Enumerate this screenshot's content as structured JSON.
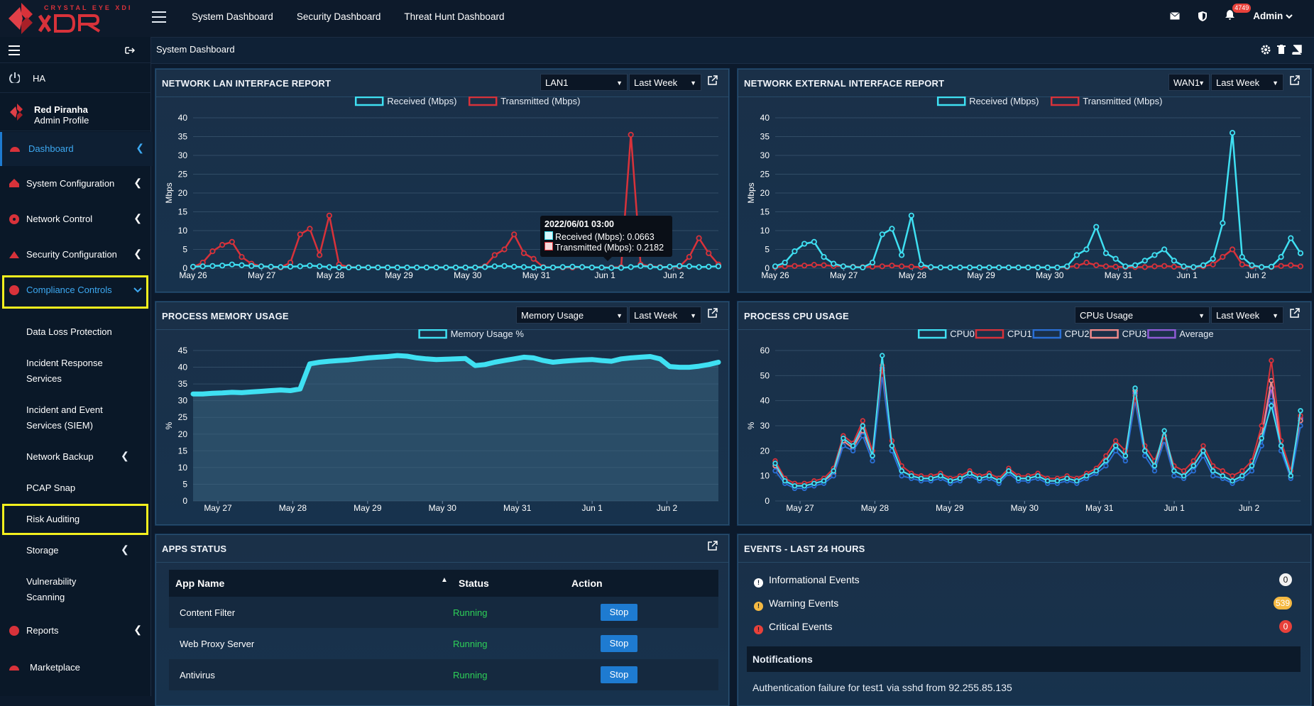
{
  "topbar": {
    "brand": "CRYSTAL EYE XDR",
    "nav": [
      "System Dashboard",
      "Security Dashboard",
      "Threat Hunt Dashboard"
    ],
    "notification_count": "4749",
    "user": "Admin"
  },
  "sidebar": {
    "ha_label": "HA",
    "profile_name": "Red Piranha",
    "profile_role": "Admin Profile",
    "items": [
      {
        "label": "Dashboard"
      },
      {
        "label": "System Configuration"
      },
      {
        "label": "Network Control"
      },
      {
        "label": "Security Configuration"
      },
      {
        "label": "Compliance Controls"
      }
    ],
    "sub_items": [
      "Data Loss Protection",
      "Incident Response",
      "Services",
      "Incident and Event",
      "Services (SIEM)",
      "Network Backup",
      "PCAP Snap",
      "Risk Auditing",
      "Storage",
      "Vulnerability",
      "Scanning"
    ],
    "bottom_items": [
      "Reports",
      "Marketplace"
    ]
  },
  "page": {
    "title": "System Dashboard"
  },
  "lan_panel": {
    "title": "NETWORK LAN INTERFACE REPORT",
    "interface": "LAN1",
    "range": "Last Week",
    "tooltip_time": "2022/06/01 03:00",
    "tooltip_received": "Received (Mbps): 0.0663",
    "tooltip_transmitted": "Transmitted (Mbps): 0.2182"
  },
  "wan_panel": {
    "title": "NETWORK EXTERNAL INTERFACE REPORT",
    "interface": "WAN1",
    "range": "Last Week"
  },
  "mem_panel": {
    "title": "PROCESS MEMORY USAGE",
    "metric": "Memory Usage",
    "range": "Last Week"
  },
  "cpu_panel": {
    "title": "PROCESS CPU USAGE",
    "metric": "CPUs Usage",
    "range": "Last Week"
  },
  "apps_panel": {
    "title": "APPS STATUS",
    "columns": [
      "App Name",
      "Status",
      "Action"
    ],
    "rows": [
      {
        "name": "Content Filter",
        "status": "Running",
        "action": "Stop"
      },
      {
        "name": "Web Proxy Server",
        "status": "Running",
        "action": "Stop"
      },
      {
        "name": "Antivirus",
        "status": "Running",
        "action": "Stop"
      }
    ]
  },
  "events_panel": {
    "title": "EVENTS - LAST 24 HOURS",
    "events": [
      {
        "label": "Informational Events",
        "count": "0"
      },
      {
        "label": "Warning Events",
        "count": "539"
      },
      {
        "label": "Critical Events",
        "count": "0"
      }
    ],
    "notifications_title": "Notifications",
    "notification": "Authentication failure for test1 via sshd from 92.255.85.135"
  },
  "colors": {
    "received": "#3fe0f2",
    "transmitted": "#d8323a",
    "cpu2": "#2a6fd6",
    "cpu3": "#f08a8a",
    "average": "#8f5bd6",
    "accent": "#1e7bd1"
  },
  "chart_data": [
    {
      "type": "line",
      "title": "NETWORK LAN INTERFACE REPORT",
      "ylabel": "Mbps",
      "ylim": [
        0,
        40
      ],
      "yticks": [
        0,
        5,
        10,
        15,
        20,
        25,
        30,
        35,
        40
      ],
      "xticks": [
        "May 26",
        "May 27",
        "May 28",
        "May 29",
        "May 30",
        "May 31",
        "Jun 1",
        "Jun 2"
      ],
      "legend": "top-center",
      "series": [
        {
          "name": "Received (Mbps)",
          "color": "#3fe0f2",
          "values": [
            0.4,
            0.5,
            0.6,
            0.7,
            1.0,
            0.8,
            0.6,
            0.5,
            0.4,
            0.3,
            0.4,
            0.5,
            0.7,
            0.5,
            0.3,
            0.2,
            0.2,
            0.2,
            0.2,
            0.2,
            0.2,
            0.2,
            0.2,
            0.2,
            0.2,
            0.2,
            0.2,
            0.2,
            0.2,
            0.2,
            0.3,
            0.5,
            0.6,
            0.4,
            0.3,
            0.2,
            0.2,
            0.2,
            0.3,
            0.4,
            0.3,
            0.2,
            0.2,
            0.1,
            0.1,
            0.3,
            0.6,
            0.4,
            0.2,
            0.4,
            0.6,
            0.5,
            0.3,
            0.4,
            0.5
          ]
        },
        {
          "name": "Transmitted (Mbps)",
          "color": "#d8323a",
          "values": [
            0.3,
            1.5,
            4.5,
            6.2,
            7.0,
            3.0,
            1.2,
            0.5,
            0.3,
            0.2,
            1.5,
            9.0,
            10.5,
            3.5,
            14.0,
            1.0,
            0.3,
            0.2,
            0.2,
            0.2,
            0.2,
            0.2,
            0.2,
            0.2,
            0.2,
            0.2,
            0.2,
            0.2,
            0.2,
            0.2,
            0.5,
            3.5,
            5.0,
            9.0,
            4.0,
            2.5,
            0.3,
            0.2,
            0.2,
            0.2,
            0.3,
            0.2,
            0.2,
            0.2,
            0.3,
            35.5,
            1.0,
            0.5,
            0.3,
            0.3,
            0.4,
            3.0,
            8.0,
            4.0,
            1.0
          ]
        }
      ]
    },
    {
      "type": "line",
      "title": "NETWORK EXTERNAL INTERFACE REPORT",
      "ylabel": "Mbps",
      "ylim": [
        0,
        40
      ],
      "yticks": [
        0,
        5,
        10,
        15,
        20,
        25,
        30,
        35,
        40
      ],
      "xticks": [
        "May 26",
        "May 27",
        "May 28",
        "May 29",
        "May 30",
        "May 31",
        "Jun 1",
        "Jun 2"
      ],
      "legend": "top-center",
      "series": [
        {
          "name": "Received (Mbps)",
          "color": "#3fe0f2",
          "values": [
            0.5,
            1.5,
            4.5,
            6.5,
            7.0,
            3.0,
            1.2,
            0.5,
            0.3,
            0.2,
            1.5,
            9.0,
            10.5,
            3.5,
            14.0,
            1.0,
            0.3,
            0.2,
            0.2,
            0.2,
            0.2,
            0.2,
            0.2,
            0.2,
            0.2,
            0.2,
            0.2,
            0.2,
            0.2,
            0.2,
            0.5,
            3.5,
            5.0,
            11.0,
            4.0,
            2.5,
            0.5,
            0.8,
            2.0,
            3.5,
            5.0,
            2.0,
            0.5,
            0.3,
            0.8,
            2.5,
            12.0,
            36.0,
            3.0,
            0.8,
            0.3,
            0.4,
            3.0,
            8.0,
            4.0
          ]
        },
        {
          "name": "Transmitted (Mbps)",
          "color": "#d8323a",
          "values": [
            0.3,
            0.5,
            0.6,
            0.7,
            0.9,
            0.8,
            0.6,
            0.5,
            0.4,
            0.3,
            0.4,
            0.5,
            0.7,
            0.5,
            0.4,
            0.3,
            0.2,
            0.2,
            0.2,
            0.2,
            0.2,
            0.2,
            0.2,
            0.2,
            0.2,
            0.2,
            0.2,
            0.2,
            0.2,
            0.2,
            0.3,
            0.6,
            1.5,
            0.8,
            0.5,
            0.4,
            0.3,
            0.3,
            0.3,
            0.5,
            0.6,
            0.4,
            0.3,
            0.2,
            0.5,
            1.0,
            3.0,
            5.0,
            1.0,
            0.5,
            0.3,
            0.3,
            0.6,
            0.8,
            0.5
          ]
        }
      ]
    },
    {
      "type": "area",
      "title": "PROCESS MEMORY USAGE",
      "ylabel": "%",
      "ylim": [
        0,
        45
      ],
      "yticks": [
        0,
        5,
        10,
        15,
        20,
        25,
        30,
        35,
        40,
        45
      ],
      "xticks": [
        "May 27",
        "May 28",
        "May 29",
        "May 30",
        "May 31",
        "Jun 1",
        "Jun 2"
      ],
      "legend": "top-center",
      "series": [
        {
          "name": "Memory Usage %",
          "color": "#3fe0f2",
          "values": [
            32,
            32,
            32.2,
            32.3,
            32.5,
            32.4,
            32.6,
            32.8,
            33,
            33.2,
            33,
            33.5,
            41,
            41.5,
            41.8,
            42,
            42.2,
            42.5,
            42.8,
            43,
            43.2,
            43.5,
            43.3,
            42.8,
            42.5,
            42.3,
            42.4,
            42.5,
            42.6,
            40.5,
            40.8,
            41.5,
            42,
            42.5,
            43,
            42.8,
            42,
            41.5,
            41.8,
            42,
            42.2,
            42.3,
            42,
            41.8,
            42.5,
            42.8,
            43,
            43.2,
            42.5,
            40.2,
            40,
            40,
            40.3,
            40.8,
            41.5
          ]
        }
      ]
    },
    {
      "type": "line",
      "title": "PROCESS CPU USAGE",
      "ylabel": "%",
      "ylim": [
        0,
        60
      ],
      "yticks": [
        0,
        10,
        20,
        30,
        40,
        50,
        60
      ],
      "xticks": [
        "May 27",
        "May 28",
        "May 29",
        "May 30",
        "May 31",
        "Jun 1",
        "Jun 2"
      ],
      "legend": "top-center",
      "series": [
        {
          "name": "CPU0",
          "color": "#3fe0f2",
          "values": [
            15,
            8,
            6,
            6,
            7,
            8,
            12,
            25,
            22,
            30,
            18,
            58,
            22,
            12,
            10,
            9,
            9,
            10,
            8,
            9,
            11,
            9,
            10,
            8,
            12,
            9,
            9,
            10,
            8,
            8,
            9,
            8,
            10,
            12,
            16,
            22,
            18,
            45,
            20,
            14,
            28,
            12,
            10,
            14,
            20,
            12,
            10,
            8,
            10,
            14,
            25,
            38,
            22,
            10,
            36
          ]
        },
        {
          "name": "CPU1",
          "color": "#d8323a",
          "values": [
            16,
            9,
            7,
            7,
            8,
            9,
            13,
            26,
            23,
            32,
            20,
            54,
            24,
            14,
            11,
            10,
            10,
            11,
            9,
            10,
            12,
            10,
            11,
            9,
            13,
            10,
            10,
            11,
            9,
            9,
            10,
            9,
            11,
            13,
            18,
            24,
            20,
            42,
            22,
            16,
            26,
            14,
            12,
            16,
            22,
            14,
            12,
            10,
            12,
            16,
            30,
            56,
            24,
            12,
            34
          ]
        },
        {
          "name": "CPU2",
          "color": "#2a6fd6",
          "values": [
            12,
            7,
            5,
            5,
            6,
            7,
            10,
            22,
            20,
            26,
            16,
            50,
            20,
            10,
            9,
            8,
            8,
            9,
            7,
            8,
            10,
            8,
            9,
            7,
            11,
            8,
            8,
            9,
            7,
            7,
            8,
            7,
            9,
            11,
            14,
            20,
            16,
            40,
            18,
            12,
            24,
            10,
            9,
            12,
            18,
            10,
            9,
            7,
            9,
            12,
            22,
            40,
            20,
            9,
            30
          ]
        },
        {
          "name": "CPU3",
          "color": "#f08a8a",
          "values": [
            14,
            8,
            6,
            6,
            7,
            8,
            11,
            24,
            21,
            28,
            18,
            52,
            22,
            12,
            10,
            9,
            9,
            10,
            8,
            9,
            11,
            9,
            10,
            8,
            12,
            9,
            9,
            10,
            8,
            8,
            9,
            8,
            10,
            12,
            16,
            22,
            18,
            44,
            20,
            14,
            26,
            12,
            10,
            14,
            20,
            12,
            10,
            8,
            10,
            14,
            26,
            48,
            22,
            10,
            32
          ]
        },
        {
          "name": "Average",
          "color": "#8f5bd6",
          "values": [
            14,
            8,
            6,
            6,
            7,
            8,
            11,
            24,
            21,
            29,
            18,
            53,
            22,
            12,
            10,
            9,
            9,
            10,
            8,
            9,
            11,
            9,
            10,
            8,
            12,
            9,
            9,
            10,
            8,
            8,
            9,
            8,
            10,
            12,
            16,
            22,
            18,
            43,
            20,
            14,
            26,
            12,
            10,
            14,
            20,
            12,
            10,
            8,
            10,
            14,
            26,
            45,
            22,
            10,
            33
          ]
        }
      ]
    }
  ]
}
